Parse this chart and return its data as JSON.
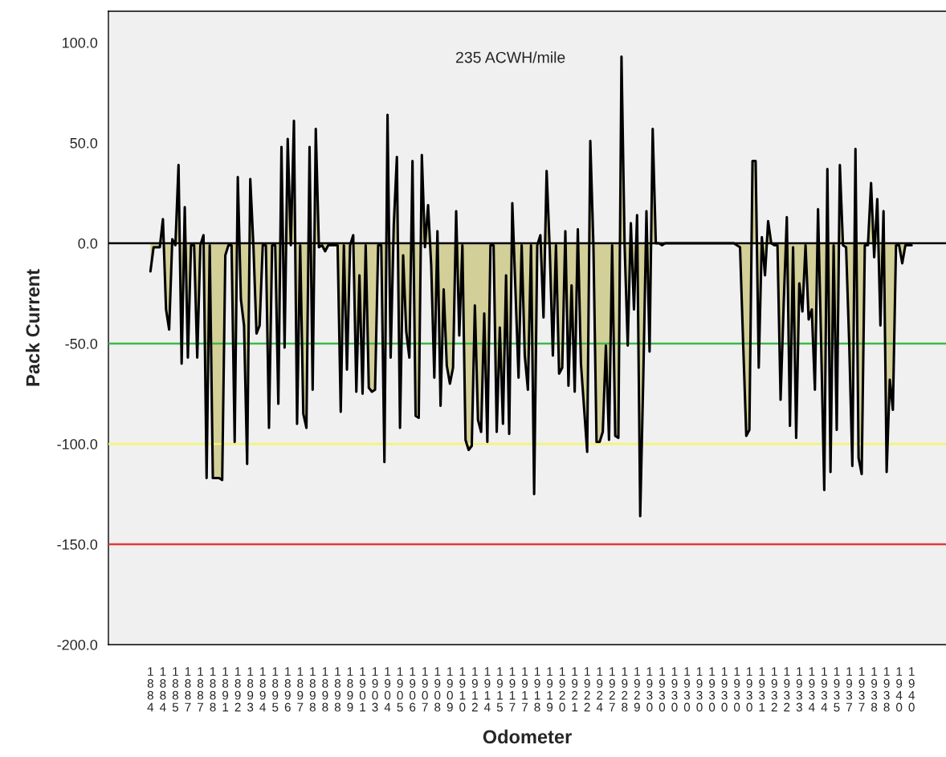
{
  "chart_data": {
    "type": "area",
    "xlabel": "Odometer",
    "ylabel": "Pack Current",
    "annotations": [
      "235 ACWH/mile"
    ],
    "categories": [
      "1884",
      null,
      null,
      null,
      "1884",
      null,
      null,
      null,
      "1885",
      null,
      null,
      null,
      "1887",
      null,
      null,
      null,
      "1887",
      null,
      null,
      null,
      "1888",
      null,
      null,
      null,
      "1891",
      null,
      null,
      null,
      "1892",
      null,
      null,
      null,
      "1893",
      null,
      null,
      null,
      "1894",
      null,
      null,
      null,
      "1895",
      null,
      null,
      null,
      "1896",
      null,
      null,
      null,
      "1897",
      null,
      null,
      null,
      "1898",
      null,
      null,
      null,
      "1898",
      null,
      null,
      null,
      "1898",
      null,
      null,
      null,
      "1899",
      null,
      null,
      null,
      "1901",
      null,
      null,
      null,
      "1903",
      null,
      null,
      null,
      "1904",
      null,
      null,
      null,
      "1905",
      null,
      null,
      null,
      "1906",
      null,
      null,
      null,
      "1907",
      null,
      null,
      null,
      "1908",
      null,
      null,
      null,
      "1909",
      null,
      null,
      null,
      "1910",
      null,
      null,
      null,
      "1912",
      null,
      null,
      null,
      "1914",
      null,
      null,
      null,
      "1915",
      null,
      null,
      null,
      "1917",
      null,
      null,
      null,
      "1917",
      null,
      null,
      null,
      "1918",
      null,
      null,
      null,
      "1919",
      null,
      null,
      null,
      "1920",
      null,
      null,
      null,
      "1921",
      null,
      null,
      null,
      "1922",
      null,
      null,
      null,
      "1924",
      null,
      null,
      null,
      "1927",
      null,
      null,
      null,
      "1928",
      null,
      null,
      null,
      "1929",
      null,
      null,
      null,
      "1930",
      null,
      null,
      null,
      "1930",
      null,
      null,
      null,
      "1930",
      null,
      null,
      null,
      "1930",
      null,
      null,
      null,
      "1930",
      null,
      null,
      null,
      "1930",
      null,
      null,
      null,
      "1930",
      null,
      null,
      null,
      "1930",
      null,
      null,
      null,
      "1930",
      null,
      null,
      null,
      "1931",
      null,
      null,
      null,
      "1932",
      null,
      null,
      null,
      "1932",
      null,
      null,
      null,
      "1933",
      null,
      null,
      null,
      "1934",
      null,
      null,
      null,
      "1934",
      null,
      null,
      null,
      "1935",
      null,
      null,
      null,
      "1937",
      null,
      null,
      null,
      "1937",
      null,
      null,
      null,
      "1938",
      null,
      null,
      null,
      "1938",
      null,
      null,
      null,
      "1940",
      null,
      null,
      null,
      "1940"
    ],
    "values": [
      -14,
      -2,
      -2,
      -2,
      12,
      -33,
      -43,
      2,
      -1,
      39,
      -60,
      18,
      -57,
      -1,
      -1,
      -57,
      -1,
      4,
      -117,
      -1,
      -117,
      -117,
      -117,
      -118,
      -6,
      -1,
      -1,
      -99,
      33,
      -28,
      -41,
      -110,
      32,
      -1,
      -45,
      -41,
      -1,
      -1,
      -92,
      -1,
      -1,
      -80,
      48,
      -52,
      52,
      -1,
      61,
      -90,
      -1,
      -85,
      -92,
      48,
      -73,
      57,
      -2,
      -1,
      -4,
      -1,
      -1,
      -1,
      -1,
      -84,
      -1,
      -63,
      -1,
      4,
      -74,
      -16,
      -75,
      -1,
      -72,
      -74,
      -73,
      -1,
      -1,
      -109,
      64,
      -57,
      9,
      43,
      -92,
      -6,
      -44,
      -57,
      41,
      -86,
      -87,
      44,
      -2,
      19,
      -11,
      -67,
      6,
      -81,
      -23,
      -61,
      -70,
      -62,
      16,
      -46,
      -1,
      -98,
      -103,
      -101,
      -31,
      -88,
      -94,
      -35,
      -99,
      -1,
      -1,
      -94,
      -42,
      -90,
      -16,
      -95,
      20,
      -23,
      -67,
      -1,
      -56,
      -73,
      -1,
      -125,
      -1,
      4,
      -37,
      36,
      -3,
      -56,
      -1,
      -65,
      -62,
      6,
      -71,
      -21,
      -74,
      7,
      -60,
      -82,
      -104,
      51,
      -1,
      -99,
      -99,
      -94,
      -51,
      -98,
      -1,
      -96,
      -97,
      93,
      -1,
      -51,
      10,
      -33,
      14,
      -136,
      -66,
      16,
      -54,
      57,
      0,
      0,
      -1,
      0,
      0,
      0,
      0,
      0,
      0,
      0,
      0,
      0,
      0,
      0,
      0,
      0,
      0,
      0,
      0,
      0,
      0,
      0,
      0,
      0,
      0,
      0,
      -1,
      -2,
      -50,
      -96,
      -93,
      41,
      41,
      -62,
      3,
      -16,
      11,
      0,
      -1,
      -1,
      -78,
      -30,
      13,
      -91,
      -2,
      -97,
      -20,
      -34,
      -1,
      -38,
      -33,
      -73,
      17,
      -50,
      -123,
      37,
      -114,
      -1,
      -93,
      39,
      -1,
      -2,
      -50,
      -111,
      47,
      -107,
      -115,
      -1,
      -1,
      30,
      -7,
      22,
      -41,
      16,
      -114,
      -68,
      -83,
      -1,
      -1,
      -10,
      -1,
      -1,
      -1
    ],
    "color": "#d3cf98",
    "ylim": [
      -200,
      115.6
    ],
    "yticks": [
      {
        "value": -200,
        "label": "-200.0"
      },
      {
        "value": -150,
        "label": "-150.0"
      },
      {
        "value": -100,
        "label": "-100.0"
      },
      {
        "value": -50,
        "label": "-50.0"
      },
      {
        "value": 0,
        "label": "0.0"
      },
      {
        "value": 50,
        "label": "50.0"
      },
      {
        "value": 100,
        "label": "100.0"
      }
    ],
    "ref_lines": [
      {
        "axis": "y",
        "value": 0,
        "color": "#000000"
      },
      {
        "axis": "y",
        "value": -50,
        "color": "#3cb84a"
      },
      {
        "axis": "y",
        "value": -100,
        "color": "#f5f56e"
      },
      {
        "axis": "y",
        "value": -150,
        "color": "#e03a3a"
      }
    ],
    "grid": false,
    "legend": false
  }
}
